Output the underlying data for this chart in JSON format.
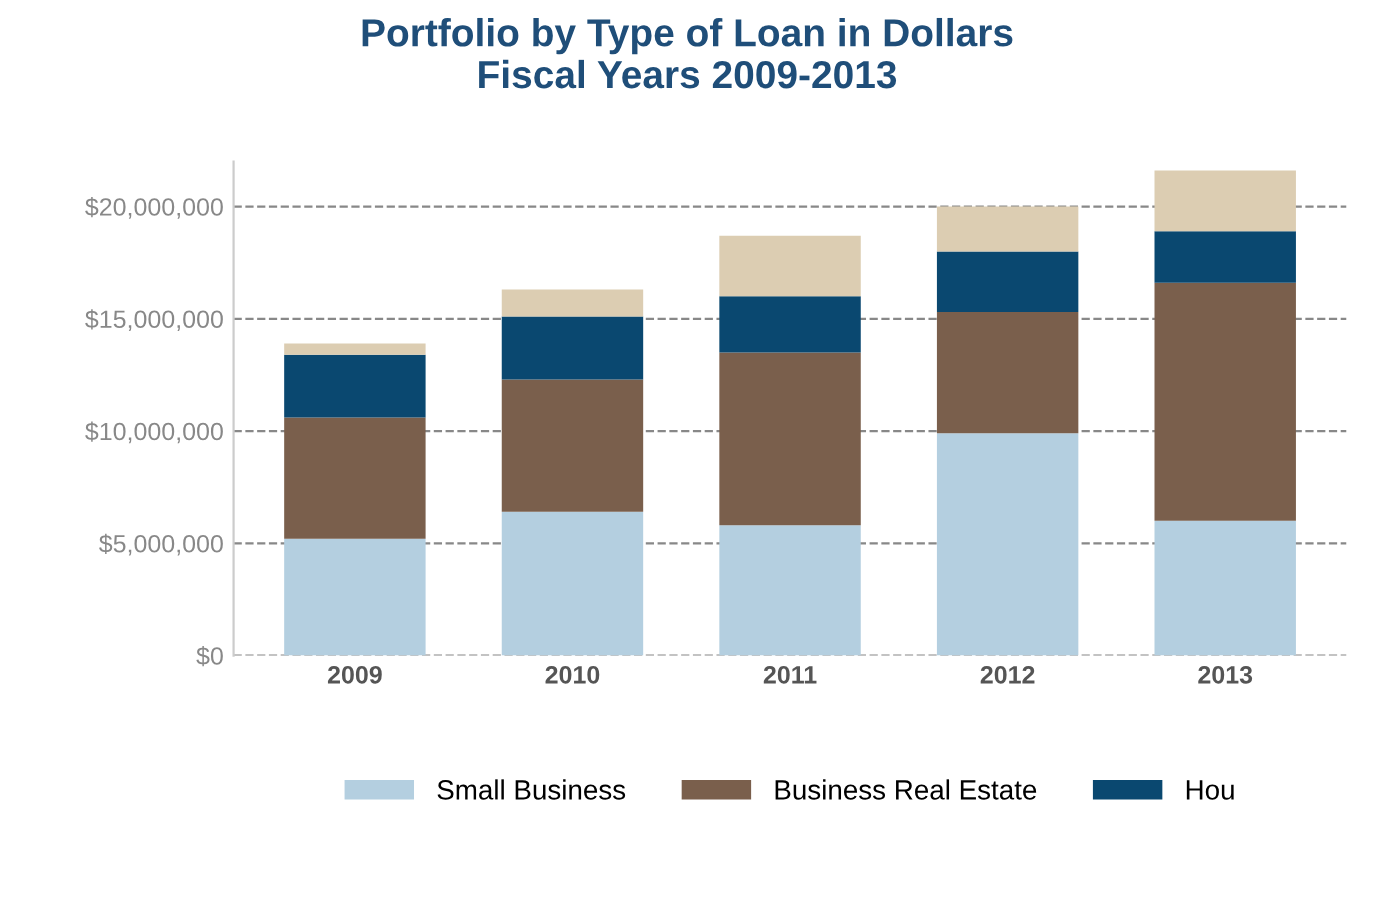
{
  "chart_data": {
    "type": "bar",
    "title": "Portfolio by Type of Loan in Dollars\nFiscal Years 2009-2013",
    "categories": [
      "2009",
      "2010",
      "2011",
      "2012",
      "2013"
    ],
    "stacked": true,
    "series": [
      {
        "name": "Small Business",
        "color": "#b4cfe0",
        "values": [
          5200000,
          6400000,
          5800000,
          9900000,
          6000000
        ]
      },
      {
        "name": "Business Real Estate",
        "color": "#7a5f4c",
        "values": [
          5400000,
          5900000,
          7700000,
          5400000,
          10600000
        ]
      },
      {
        "name": "Hou",
        "color": "#0a4870",
        "values": [
          2800000,
          2800000,
          2500000,
          2700000,
          2300000
        ]
      },
      {
        "color": "#dccdb2",
        "values": [
          500000,
          1200000,
          2700000,
          2000000,
          2700000
        ]
      }
    ],
    "ylim": [
      0,
      22000000
    ],
    "yticks": [
      {
        "value": 0,
        "label": "$0"
      },
      {
        "value": 5000000,
        "label": "$5,000,000"
      },
      {
        "value": 10000000,
        "label": "$10,000,000"
      },
      {
        "value": 15000000,
        "label": "$15,000,000"
      },
      {
        "value": 20000000,
        "label": "$20,000,000"
      }
    ],
    "grid": "y",
    "legend": "bottom"
  }
}
